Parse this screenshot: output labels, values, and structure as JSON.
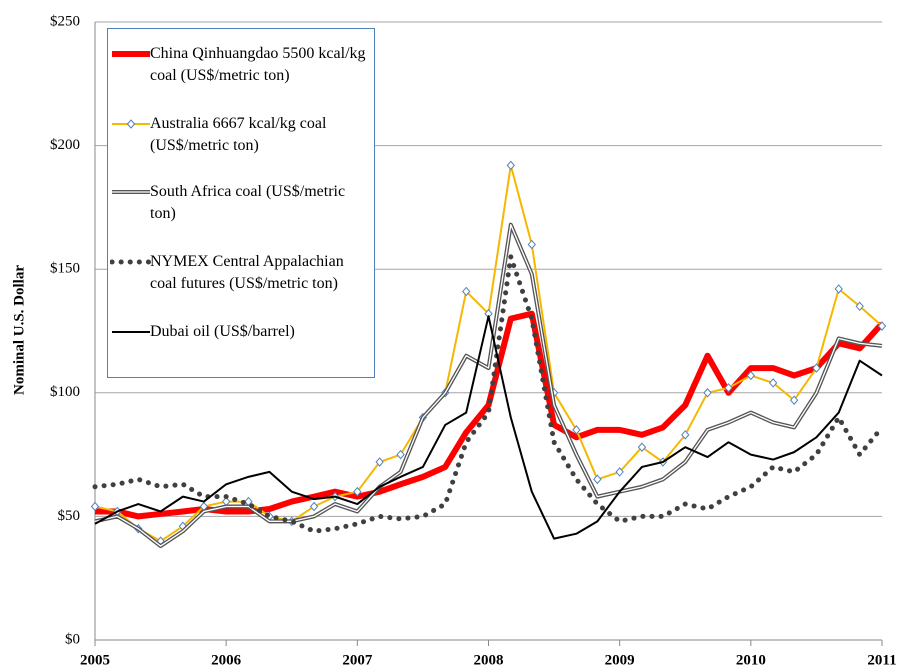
{
  "chart_data": {
    "type": "line",
    "y_label": "Nominal U.S. Dollar",
    "x": [
      2005,
      2005.17,
      2005.33,
      2005.5,
      2005.67,
      2005.83,
      2006,
      2006.17,
      2006.33,
      2006.5,
      2006.67,
      2006.83,
      2007,
      2007.17,
      2007.33,
      2007.5,
      2007.67,
      2007.83,
      2008,
      2008.17,
      2008.33,
      2008.5,
      2008.67,
      2008.83,
      2009,
      2009.17,
      2009.33,
      2009.5,
      2009.67,
      2009.83,
      2010,
      2010.17,
      2010.33,
      2010.5,
      2010.67,
      2010.83,
      2011
    ],
    "series": [
      {
        "name": "China Qinhuangdao 5500 kcal/kg coal (US$/metric ton)",
        "color": "#ff0000",
        "width": 6,
        "values": [
          52,
          52,
          50,
          51,
          52,
          53,
          52,
          52,
          53,
          56,
          58,
          60,
          58,
          60,
          63,
          66,
          70,
          84,
          95,
          130,
          132,
          87,
          82,
          85,
          85,
          83,
          86,
          95,
          115,
          100,
          110,
          110,
          107,
          110,
          120,
          118,
          128
        ]
      },
      {
        "name": "Australia 6667 kcal/kg coal (US$/metric ton)",
        "color": "#f5b800",
        "width": 2,
        "marker": "diamond",
        "values": [
          54,
          52,
          45,
          40,
          46,
          54,
          56,
          56,
          50,
          48,
          54,
          58,
          60,
          72,
          75,
          90,
          100,
          141,
          132,
          192,
          160,
          100,
          85,
          65,
          68,
          78,
          72,
          83,
          100,
          102,
          107,
          104,
          97,
          110,
          142,
          135,
          127
        ]
      },
      {
        "name": "South Africa coal (US$/metric ton)",
        "color": "#555555",
        "width": 4,
        "style": "double",
        "values": [
          48,
          50,
          45,
          38,
          44,
          52,
          54,
          54,
          48,
          48,
          50,
          55,
          52,
          62,
          68,
          90,
          100,
          115,
          110,
          168,
          148,
          95,
          75,
          58,
          60,
          62,
          65,
          72,
          85,
          88,
          92,
          88,
          86,
          100,
          122,
          120,
          119
        ]
      },
      {
        "name": "NYMEX Central Appalachian coal futures (US$/metric ton)",
        "color": "#404040",
        "width": 5,
        "style": "dotted",
        "values": [
          62,
          63,
          65,
          62,
          63,
          58,
          58,
          55,
          50,
          48,
          44,
          45,
          47,
          50,
          49,
          50,
          55,
          80,
          92,
          155,
          130,
          80,
          65,
          55,
          48,
          50,
          50,
          55,
          53,
          58,
          62,
          70,
          68,
          75,
          90,
          75,
          86
        ]
      },
      {
        "name": "Dubai oil (US$/barrel)",
        "color": "#000000",
        "width": 2,
        "values": [
          47,
          52,
          55,
          52,
          58,
          56,
          63,
          66,
          68,
          60,
          57,
          58,
          55,
          62,
          66,
          70,
          87,
          92,
          131,
          90,
          60,
          41,
          43,
          48,
          60,
          70,
          72,
          78,
          74,
          80,
          75,
          73,
          76,
          82,
          92,
          113,
          107
        ]
      }
    ],
    "xlim": [
      2005,
      2011
    ],
    "xticks": [
      2005,
      2006,
      2007,
      2008,
      2009,
      2010,
      2011
    ],
    "ylim": [
      0,
      250
    ],
    "yticks": [
      {
        "value": 0,
        "label": "$0"
      },
      {
        "value": 50,
        "label": "$50"
      },
      {
        "value": 100,
        "label": "$100"
      },
      {
        "value": 150,
        "label": "$150"
      },
      {
        "value": 200,
        "label": "$200"
      },
      {
        "value": 250,
        "label": "$250"
      }
    ],
    "grid": true
  }
}
